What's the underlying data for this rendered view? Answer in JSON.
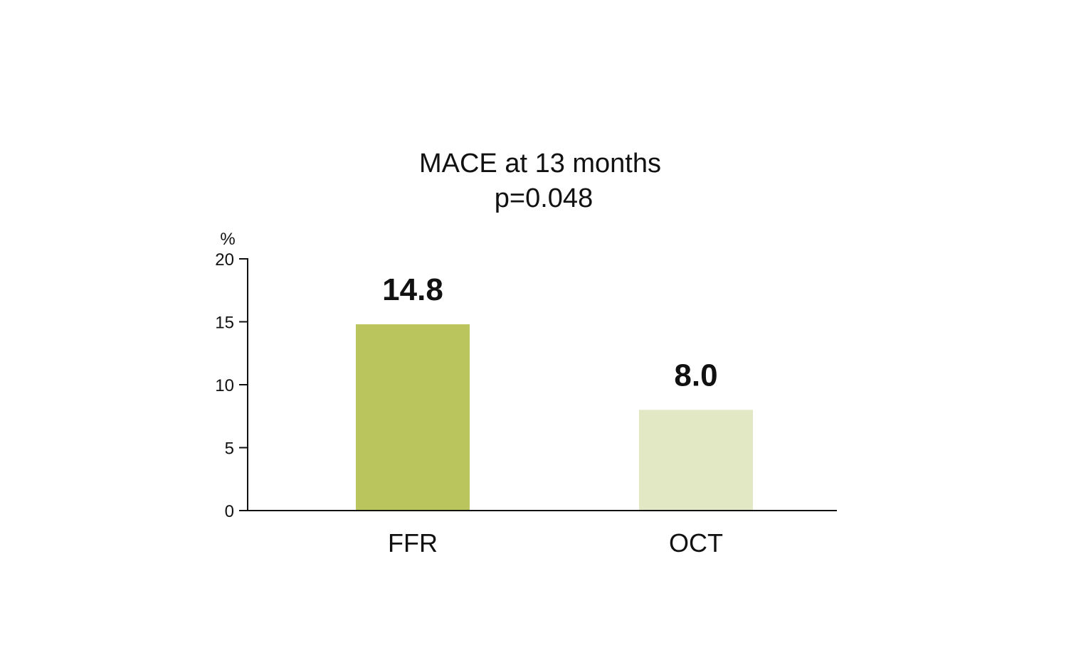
{
  "chart_data": {
    "type": "bar",
    "title": "MACE at 13 months",
    "subtitle": "p=0.048",
    "ylabel": "%",
    "xlabel": "",
    "ylim": [
      0,
      20
    ],
    "yticks": [
      0,
      5,
      10,
      15,
      20
    ],
    "categories": [
      "FFR",
      "OCT"
    ],
    "values": [
      14.8,
      8.0
    ],
    "value_labels": [
      "14.8",
      "8.0"
    ],
    "colors": [
      "#bbc55e",
      "#e2e7c4"
    ],
    "grid": false,
    "legend": "none"
  }
}
